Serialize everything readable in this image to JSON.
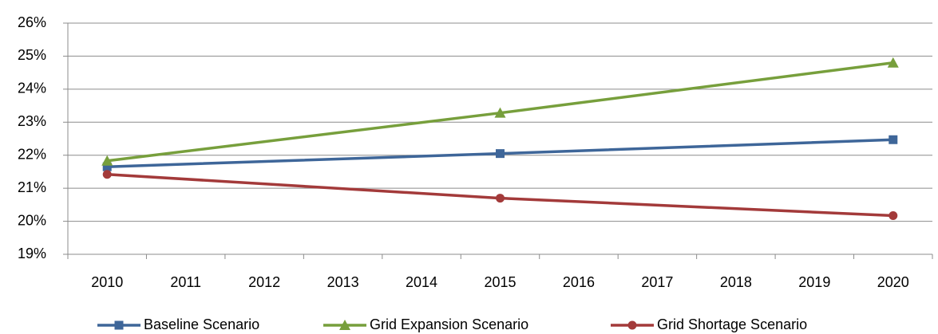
{
  "chart_data": {
    "type": "line",
    "x": [
      2010,
      2015,
      2020
    ],
    "xlim": [
      2009.5,
      2020.5
    ],
    "xticks": [
      2010,
      2011,
      2012,
      2013,
      2014,
      2015,
      2016,
      2017,
      2018,
      2019,
      2020
    ],
    "ylim": [
      19,
      26
    ],
    "yticks": [
      {
        "value": 19,
        "label": "19%"
      },
      {
        "value": 20,
        "label": "20%"
      },
      {
        "value": 21,
        "label": "21%"
      },
      {
        "value": 22,
        "label": "22%"
      },
      {
        "value": 23,
        "label": "23%"
      },
      {
        "value": 24,
        "label": "24%"
      },
      {
        "value": 25,
        "label": "25%"
      },
      {
        "value": 26,
        "label": "26%"
      }
    ],
    "grid": true,
    "legend": "bottom",
    "series": [
      {
        "name": "Baseline Scenario",
        "color": "#3e6699",
        "marker": "square",
        "values": [
          21.65,
          22.05,
          22.47
        ]
      },
      {
        "name": "Grid Expansion Scenario",
        "color": "#779f3c",
        "marker": "triangle",
        "values": [
          21.83,
          23.28,
          24.8
        ]
      },
      {
        "name": "Grid Shortage Scenario",
        "color": "#a33a3a",
        "marker": "circle",
        "values": [
          21.42,
          20.7,
          20.17
        ]
      }
    ]
  }
}
